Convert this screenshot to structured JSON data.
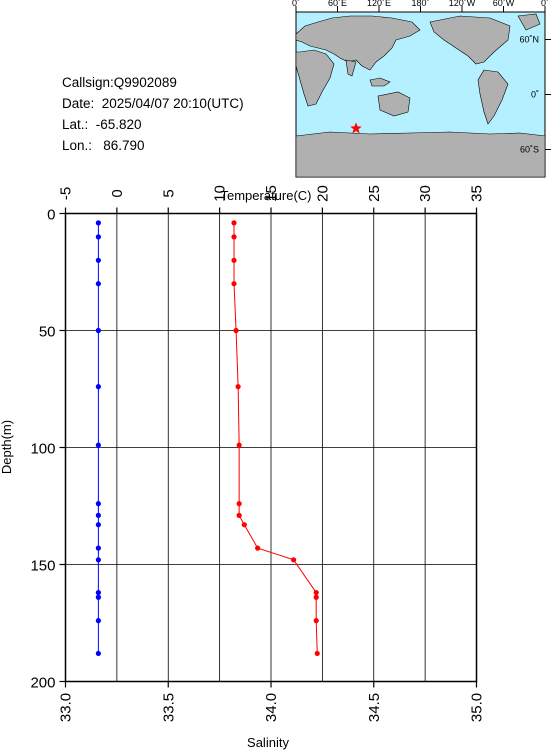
{
  "info": {
    "callsign": "Callsign:Q9902089",
    "date": "Date:  2025/04/07 20:10(UTC)",
    "lat": "Lat.:  -65.820",
    "lon": "Lon.:   86.790"
  },
  "map": {
    "top_labels": [
      "0˚",
      "60˚E",
      "120˚E",
      "180˚",
      "120˚W",
      "60˚W",
      "0˚"
    ],
    "right_labels": [
      "60˚N",
      "0˚",
      "60˚S"
    ],
    "marker_color": "#ff0000",
    "ocean_color": "#b4f0ff",
    "land_color": "#b0b0b0"
  },
  "chart_data": {
    "type": "line",
    "title": "",
    "ylabel": "Depth(m)",
    "ylim": [
      0,
      200
    ],
    "y_ticks": [
      "0",
      "50",
      "100",
      "150",
      "200"
    ],
    "y_tick_values": [
      0,
      50,
      100,
      150,
      200
    ],
    "grid": true,
    "top_axis": {
      "label": "Temperature(C)",
      "range": [
        -5,
        35
      ],
      "ticks": [
        "-5",
        "0",
        "5",
        "10",
        "15",
        "20",
        "25",
        "30",
        "35"
      ],
      "tick_values": [
        -5,
        0,
        5,
        10,
        15,
        20,
        25,
        30,
        35
      ]
    },
    "bottom_axis": {
      "label": "Salinity",
      "range": [
        33.0,
        35.0
      ],
      "ticks": [
        "33.0",
        "33.5",
        "34.0",
        "34.5",
        "35.0"
      ],
      "tick_values": [
        33.0,
        33.5,
        34.0,
        34.5,
        35.0
      ]
    },
    "series": [
      {
        "axis": "top",
        "color": "#0000ff",
        "points": [
          {
            "x": -1.8,
            "y": 4
          },
          {
            "x": -1.8,
            "y": 10
          },
          {
            "x": -1.8,
            "y": 20
          },
          {
            "x": -1.8,
            "y": 30
          },
          {
            "x": -1.8,
            "y": 50
          },
          {
            "x": -1.8,
            "y": 74
          },
          {
            "x": -1.8,
            "y": 99
          },
          {
            "x": -1.8,
            "y": 124
          },
          {
            "x": -1.8,
            "y": 129
          },
          {
            "x": -1.8,
            "y": 133
          },
          {
            "x": -1.8,
            "y": 143
          },
          {
            "x": -1.8,
            "y": 148
          },
          {
            "x": -1.8,
            "y": 162
          },
          {
            "x": -1.8,
            "y": 164
          },
          {
            "x": -1.8,
            "y": 174
          },
          {
            "x": -1.8,
            "y": 188
          }
        ]
      },
      {
        "axis": "bottom",
        "color": "#ff0000",
        "points": [
          {
            "x": 33.82,
            "y": 4
          },
          {
            "x": 33.82,
            "y": 10
          },
          {
            "x": 33.82,
            "y": 20
          },
          {
            "x": 33.82,
            "y": 30
          },
          {
            "x": 33.83,
            "y": 50
          },
          {
            "x": 33.84,
            "y": 74
          },
          {
            "x": 33.845,
            "y": 99
          },
          {
            "x": 33.845,
            "y": 124
          },
          {
            "x": 33.845,
            "y": 129
          },
          {
            "x": 33.87,
            "y": 133
          },
          {
            "x": 33.935,
            "y": 143
          },
          {
            "x": 34.11,
            "y": 148
          },
          {
            "x": 34.22,
            "y": 162
          },
          {
            "x": 34.22,
            "y": 164
          },
          {
            "x": 34.22,
            "y": 174
          },
          {
            "x": 34.225,
            "y": 188
          }
        ]
      }
    ]
  }
}
